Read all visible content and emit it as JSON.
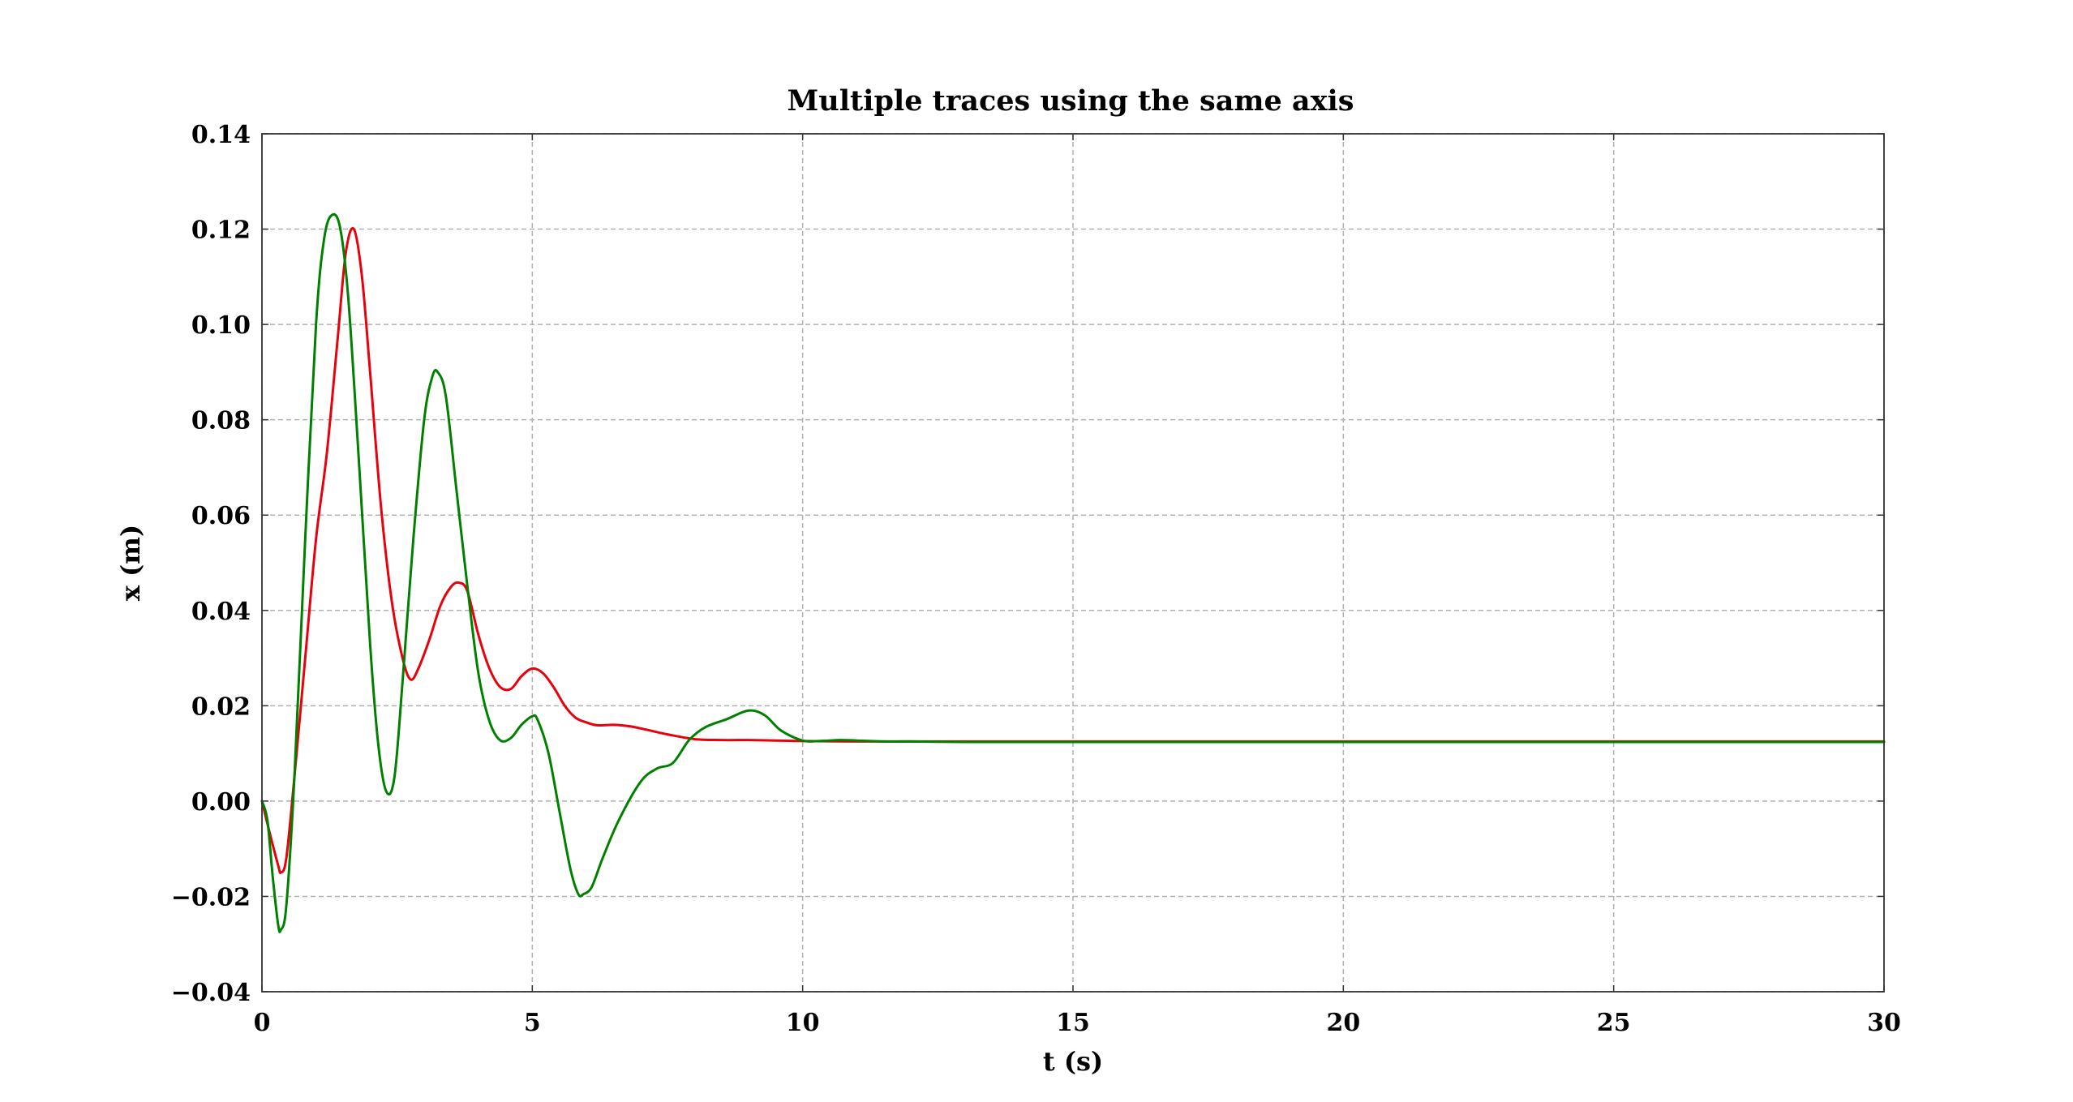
{
  "chart_data": {
    "type": "line",
    "title": "Multiple traces using the same axis",
    "xlabel": "t (s)",
    "ylabel": "x (m)",
    "xlim": [
      0,
      30
    ],
    "ylim": [
      -0.04,
      0.14
    ],
    "xticks": [
      0,
      5,
      10,
      15,
      20,
      25,
      30
    ],
    "xtick_labels": [
      "0",
      "5",
      "10",
      "15",
      "20",
      "25",
      "30"
    ],
    "yticks": [
      -0.04,
      -0.02,
      0.0,
      0.02,
      0.04,
      0.06,
      0.08,
      0.1,
      0.12,
      0.14
    ],
    "ytick_labels": [
      "−0.04",
      "−0.02",
      "0.00",
      "0.02",
      "0.04",
      "0.06",
      "0.08",
      "0.10",
      "0.12",
      "0.14"
    ],
    "grid": true,
    "legend": "none",
    "series": [
      {
        "color": "#e8000b",
        "x": [
          0,
          0.15,
          0.3,
          0.35,
          0.45,
          0.6,
          0.8,
          1.0,
          1.2,
          1.4,
          1.55,
          1.7,
          1.85,
          2.0,
          2.2,
          2.4,
          2.6,
          2.75,
          2.9,
          3.1,
          3.3,
          3.5,
          3.65,
          3.8,
          4.0,
          4.2,
          4.4,
          4.6,
          4.8,
          5.0,
          5.2,
          5.4,
          5.6,
          5.8,
          6.0,
          6.2,
          6.5,
          6.8,
          7.1,
          7.5,
          8.0,
          8.5,
          9.0,
          9.5,
          10.0,
          11.0,
          12.0,
          13.0,
          15.0,
          20.0,
          25.0,
          30.0
        ],
        "y": [
          0.0,
          -0.007,
          -0.0135,
          -0.015,
          -0.012,
          0.005,
          0.03,
          0.055,
          0.073,
          0.097,
          0.115,
          0.12,
          0.11,
          0.09,
          0.062,
          0.042,
          0.03,
          0.0255,
          0.028,
          0.034,
          0.041,
          0.045,
          0.0458,
          0.044,
          0.035,
          0.028,
          0.024,
          0.0235,
          0.0262,
          0.0278,
          0.0268,
          0.0238,
          0.02,
          0.0175,
          0.0165,
          0.0159,
          0.016,
          0.0157,
          0.015,
          0.014,
          0.013,
          0.0128,
          0.0128,
          0.0127,
          0.0126,
          0.0125,
          0.0125,
          0.0125,
          0.0125,
          0.0125,
          0.0125,
          0.0125
        ]
      },
      {
        "color": "#008000",
        "x": [
          0,
          0.1,
          0.2,
          0.3,
          0.35,
          0.45,
          0.6,
          0.8,
          1.0,
          1.15,
          1.3,
          1.45,
          1.6,
          1.8,
          2.0,
          2.15,
          2.3,
          2.45,
          2.6,
          2.8,
          3.0,
          3.15,
          3.25,
          3.4,
          3.6,
          3.8,
          4.0,
          4.2,
          4.4,
          4.6,
          4.8,
          5.0,
          5.1,
          5.3,
          5.5,
          5.7,
          5.85,
          5.95,
          6.1,
          6.3,
          6.6,
          7.0,
          7.3,
          7.6,
          7.9,
          8.2,
          8.6,
          9.0,
          9.3,
          9.6,
          10.0,
          10.3,
          10.7,
          11.0,
          11.5,
          12.0,
          13.0,
          15.0,
          20.0,
          25.0,
          30.0
        ],
        "y": [
          0.0,
          -0.004,
          -0.016,
          -0.026,
          -0.027,
          -0.022,
          0.005,
          0.055,
          0.1,
          0.118,
          0.123,
          0.12,
          0.105,
          0.07,
          0.033,
          0.012,
          0.002,
          0.005,
          0.025,
          0.055,
          0.08,
          0.089,
          0.09,
          0.085,
          0.065,
          0.045,
          0.027,
          0.017,
          0.0128,
          0.0132,
          0.016,
          0.0178,
          0.017,
          0.01,
          -0.002,
          -0.014,
          -0.0195,
          -0.0195,
          -0.018,
          -0.012,
          -0.004,
          0.004,
          0.0068,
          0.008,
          0.0128,
          0.0155,
          0.0172,
          0.019,
          0.018,
          0.0148,
          0.0127,
          0.0126,
          0.0128,
          0.0127,
          0.0125,
          0.0125,
          0.0124,
          0.0124,
          0.0124,
          0.0124,
          0.0124
        ]
      }
    ]
  }
}
